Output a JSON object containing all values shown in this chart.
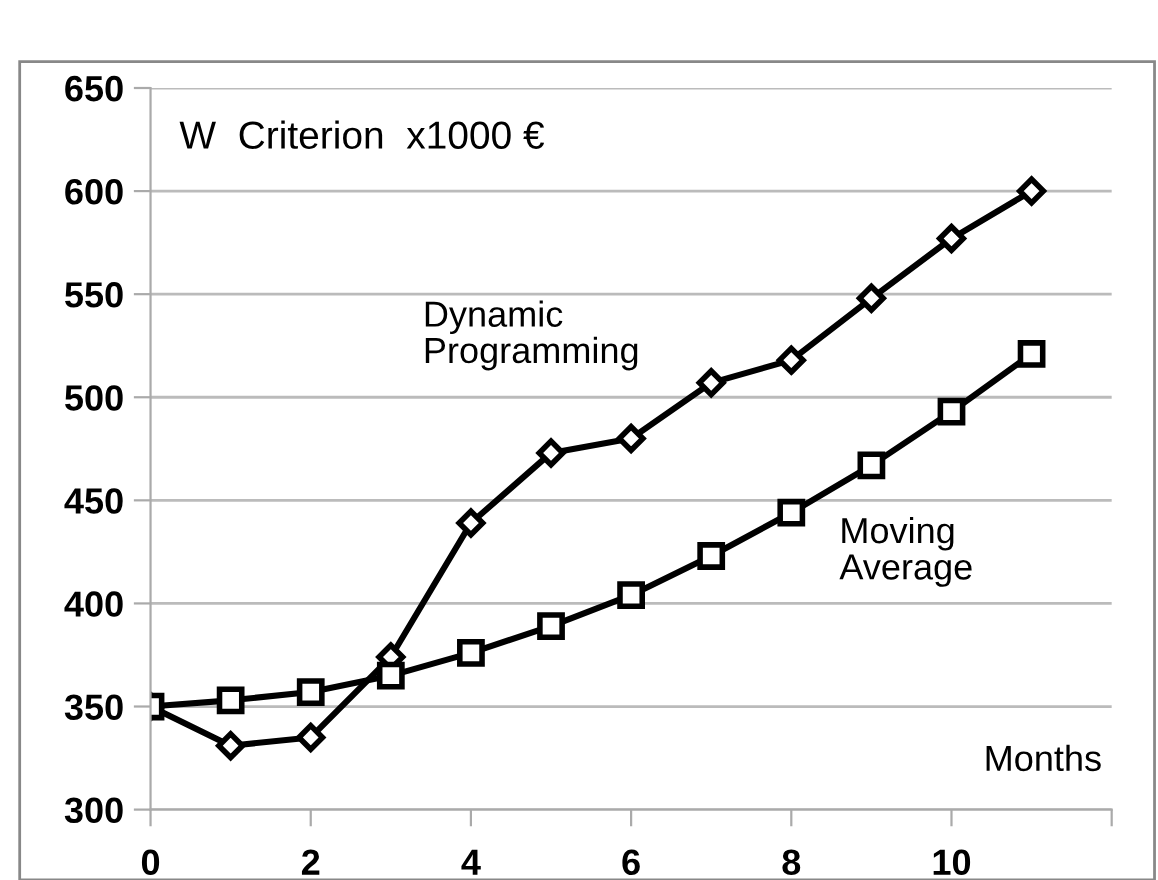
{
  "chart_data": {
    "type": "line",
    "title": "W  Criterion  x1000 €",
    "xlabel": "Months",
    "x": [
      0,
      1,
      2,
      3,
      4,
      5,
      6,
      7,
      8,
      9,
      10,
      11
    ],
    "series": [
      {
        "name": "Dynamic Programming",
        "color": "#000000",
        "marker": "diamond",
        "values": [
          350,
          331,
          335,
          374,
          439,
          473,
          480,
          507,
          518,
          548,
          577,
          600
        ]
      },
      {
        "name": "Moving Average",
        "color": "#000000",
        "marker": "square",
        "values": [
          350,
          353,
          357,
          365,
          376,
          389,
          404,
          423,
          444,
          467,
          493,
          521
        ]
      }
    ],
    "xlim": [
      0,
      12
    ],
    "xticks": [
      0,
      2,
      4,
      6,
      8,
      10,
      {
        "value": 12,
        "label": null
      }
    ],
    "ylim": [
      300,
      650
    ],
    "yticks": [
      300,
      350,
      400,
      450,
      500,
      550,
      600,
      650
    ],
    "grid": "y",
    "legend": false,
    "line_style": "solid"
  }
}
